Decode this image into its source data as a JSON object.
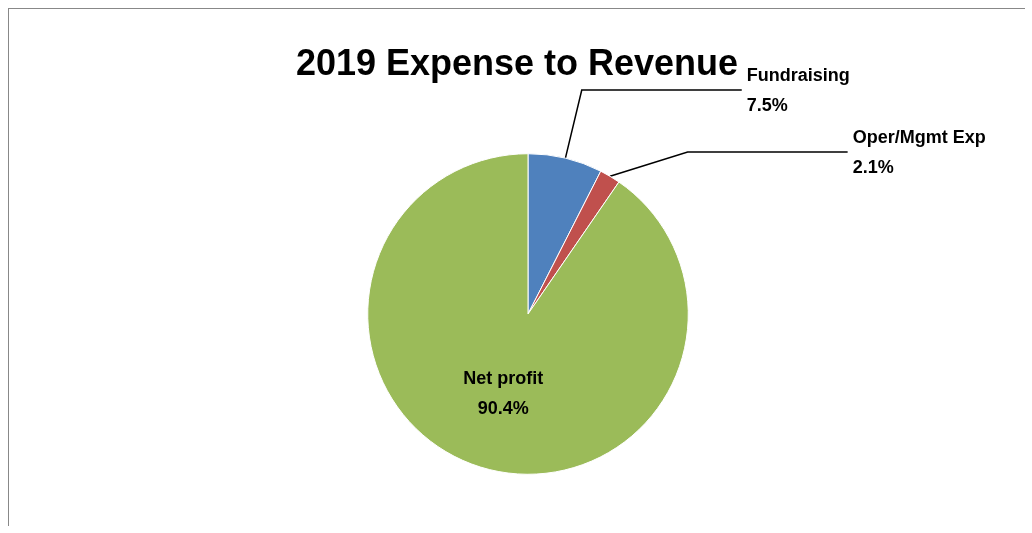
{
  "chart_data": {
    "type": "pie",
    "title": "2019 Expense to Revenue",
    "categories": [
      "Fundraising",
      "Oper/Mgmt Exp",
      "Net profit"
    ],
    "values": [
      7.5,
      2.1,
      90.4
    ],
    "value_labels": [
      "7.5%",
      "2.1%",
      "90.4%"
    ],
    "colors": [
      "#4f81bd",
      "#c0504d",
      "#9bbb59"
    ],
    "legend": false
  }
}
